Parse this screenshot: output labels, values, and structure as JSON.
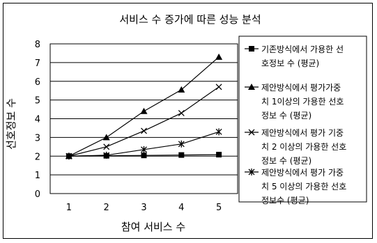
{
  "chart_data": {
    "type": "line",
    "title": "서비스 수 증가에 따른 성능 분석",
    "xlabel": "참여 서비스 수",
    "ylabel": "선호정보 수",
    "x": [
      1,
      2,
      3,
      4,
      5
    ],
    "xticks": [
      "1",
      "2",
      "3",
      "4",
      "5"
    ],
    "yticks": [
      "0",
      "1",
      "2",
      "3",
      "4",
      "5",
      "6",
      "7",
      "8"
    ],
    "ylim": [
      0,
      8
    ],
    "grid": true,
    "legend_position": "right",
    "series": [
      {
        "name": "기존방식에서 가용한 선호정보 수 (평균)",
        "legend_lines": [
          "기존방식에서 가용한 선",
          "호정보 수 (평균)"
        ],
        "marker": "square",
        "values": [
          2.0,
          2.02,
          2.04,
          2.06,
          2.08
        ]
      },
      {
        "name": "제안방식에서 평가가중치 1이상의 가용한 선호정보 수 (평균)",
        "legend_lines": [
          "제안방식에서 평가가중",
          "치 1이상의 가용한 선호",
          "정보 수 (평균)"
        ],
        "marker": "triangle",
        "values": [
          2.0,
          3.0,
          4.4,
          5.55,
          7.3
        ]
      },
      {
        "name": "제안방식에서 평가 기중치 2 이상의 가용한 선호정보 수 (평균)",
        "legend_lines": [
          "제안방식에서 평가 기중",
          "치 2 이상의 가용한 선호",
          "정보 수 (평균)"
        ],
        "marker": "x",
        "values": [
          2.0,
          2.5,
          3.35,
          4.3,
          5.7
        ]
      },
      {
        "name": "제안방식에서 평가 가중치 5 이상의 가용한 선호정보수 (평균)",
        "legend_lines": [
          "제안방식에서 평가 가중",
          "치 5 이상의 가용한 선호",
          "정보수 (평균)"
        ],
        "marker": "star",
        "values": [
          2.0,
          2.05,
          2.35,
          2.65,
          3.3
        ]
      }
    ]
  }
}
